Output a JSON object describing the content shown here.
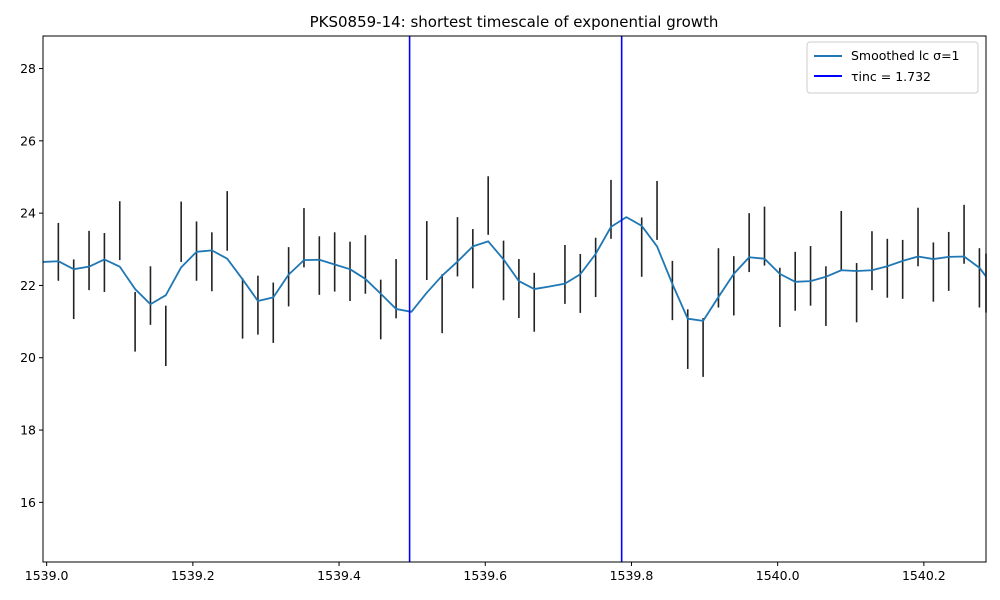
{
  "chart_data": {
    "type": "line",
    "title": "PKS0859-14: shortest timescale of exponential growth",
    "xlabel": "",
    "ylabel": "",
    "xlim": [
      1538.995,
      1540.285
    ],
    "ylim": [
      14.35,
      28.9
    ],
    "xticks": [
      {
        "value": 1539.0,
        "label": "1539.0"
      },
      {
        "value": 1539.2,
        "label": "1539.2"
      },
      {
        "value": 1539.4,
        "label": "1539.4"
      },
      {
        "value": 1539.6,
        "label": "1539.6"
      },
      {
        "value": 1539.8,
        "label": "1539.8"
      },
      {
        "value": 1540.0,
        "label": "1540.0"
      },
      {
        "value": 1540.2,
        "label": "1540.2"
      }
    ],
    "yticks": [
      {
        "value": 16,
        "label": "16"
      },
      {
        "value": 18,
        "label": "18"
      },
      {
        "value": 20,
        "label": "20"
      },
      {
        "value": 22,
        "label": "22"
      },
      {
        "value": 24,
        "label": "24"
      },
      {
        "value": 26,
        "label": "26"
      },
      {
        "value": 28,
        "label": "28"
      }
    ],
    "grid": false,
    "legend_position": "top-right",
    "series": [
      {
        "name": "Smoothed lc σ=1",
        "color": "#1f77b4",
        "x": [
          1538.995,
          1539.016,
          1539.037,
          1539.058,
          1539.079,
          1539.1,
          1539.121,
          1539.142,
          1539.163,
          1539.184,
          1539.205,
          1539.226,
          1539.247,
          1539.268,
          1539.289,
          1539.31,
          1539.331,
          1539.352,
          1539.373,
          1539.394,
          1539.415,
          1539.436,
          1539.457,
          1539.478,
          1539.499,
          1539.52,
          1539.541,
          1539.562,
          1539.583,
          1539.604,
          1539.625,
          1539.646,
          1539.667,
          1539.688,
          1539.709,
          1539.73,
          1539.751,
          1539.772,
          1539.793,
          1539.814,
          1539.835,
          1539.856,
          1539.877,
          1539.898,
          1539.919,
          1539.94,
          1539.961,
          1539.982,
          1540.003,
          1540.024,
          1540.045,
          1540.066,
          1540.087,
          1540.108,
          1540.129,
          1540.15,
          1540.171,
          1540.192,
          1540.213,
          1540.234,
          1540.255,
          1540.276,
          1540.285
        ],
        "y": [
          22.65,
          22.67,
          22.45,
          22.52,
          22.72,
          22.52,
          21.9,
          21.48,
          21.73,
          22.5,
          22.93,
          22.97,
          22.74,
          22.17,
          21.57,
          21.67,
          22.3,
          22.7,
          22.71,
          22.58,
          22.45,
          22.18,
          21.77,
          21.35,
          21.27,
          21.8,
          22.27,
          22.66,
          23.08,
          23.22,
          22.72,
          22.12,
          21.9,
          21.97,
          22.05,
          22.31,
          22.87,
          23.62,
          23.89,
          23.65,
          23.08,
          22.04,
          21.08,
          21.02,
          21.68,
          22.32,
          22.78,
          22.74,
          22.32,
          22.1,
          22.12,
          22.24,
          22.42,
          22.4,
          22.42,
          22.53,
          22.68,
          22.8,
          22.73,
          22.79,
          22.8,
          22.49,
          22.25
        ]
      },
      {
        "name": "τinc = 1.732",
        "color": "#0000ff",
        "vlines": [
          1539.4965,
          1539.7866
        ]
      }
    ],
    "errorbars": {
      "color": "#222222",
      "bars": [
        [
          1539.016,
          22.13,
          23.73
        ],
        [
          1539.037,
          21.07,
          22.72
        ],
        [
          1539.058,
          21.87,
          23.51
        ],
        [
          1539.079,
          21.82,
          23.45
        ],
        [
          1539.1,
          22.7,
          24.33
        ],
        [
          1539.121,
          20.17,
          21.82
        ],
        [
          1539.142,
          20.91,
          22.53
        ],
        [
          1539.163,
          19.77,
          21.44
        ],
        [
          1539.184,
          22.65,
          24.32
        ],
        [
          1539.205,
          22.13,
          23.77
        ],
        [
          1539.226,
          21.84,
          23.47
        ],
        [
          1539.247,
          22.96,
          24.61
        ],
        [
          1539.268,
          20.53,
          22.2
        ],
        [
          1539.289,
          20.64,
          22.27
        ],
        [
          1539.31,
          20.41,
          22.08
        ],
        [
          1539.331,
          21.42,
          23.06
        ],
        [
          1539.352,
          22.5,
          24.14
        ],
        [
          1539.373,
          21.74,
          23.36
        ],
        [
          1539.394,
          21.83,
          23.47
        ],
        [
          1539.415,
          21.57,
          23.21
        ],
        [
          1539.436,
          21.77,
          23.39
        ],
        [
          1539.457,
          20.51,
          22.16
        ],
        [
          1539.478,
          21.09,
          22.73
        ],
        [
          1539.52,
          22.15,
          23.78
        ],
        [
          1539.541,
          20.68,
          22.31
        ],
        [
          1539.562,
          22.25,
          23.89
        ],
        [
          1539.583,
          21.92,
          23.56
        ],
        [
          1539.604,
          23.4,
          25.02
        ],
        [
          1539.625,
          21.59,
          23.24
        ],
        [
          1539.646,
          21.1,
          22.73
        ],
        [
          1539.667,
          20.72,
          22.35
        ],
        [
          1539.709,
          21.49,
          23.12
        ],
        [
          1539.73,
          21.24,
          22.87
        ],
        [
          1539.751,
          21.68,
          23.32
        ],
        [
          1539.772,
          23.29,
          24.92
        ],
        [
          1539.814,
          22.24,
          23.88
        ],
        [
          1539.835,
          23.26,
          24.89
        ],
        [
          1539.856,
          21.04,
          22.68
        ],
        [
          1539.877,
          19.69,
          21.34
        ],
        [
          1539.898,
          19.47,
          21.1
        ],
        [
          1539.919,
          21.39,
          23.03
        ],
        [
          1539.94,
          21.17,
          22.81
        ],
        [
          1539.961,
          22.37,
          24.0
        ],
        [
          1539.982,
          22.55,
          24.18
        ],
        [
          1540.003,
          20.85,
          22.49
        ],
        [
          1540.024,
          21.3,
          22.93
        ],
        [
          1540.045,
          21.44,
          23.09
        ],
        [
          1540.066,
          20.88,
          22.53
        ],
        [
          1540.087,
          22.41,
          24.06
        ],
        [
          1540.108,
          20.98,
          22.62
        ],
        [
          1540.129,
          21.87,
          23.5
        ],
        [
          1540.15,
          21.66,
          23.29
        ],
        [
          1540.171,
          21.63,
          23.26
        ],
        [
          1540.192,
          22.53,
          24.15
        ],
        [
          1540.213,
          21.55,
          23.19
        ],
        [
          1540.234,
          21.85,
          23.48
        ],
        [
          1540.255,
          22.6,
          24.23
        ],
        [
          1540.276,
          21.39,
          23.03
        ],
        [
          1540.285,
          21.25,
          22.88
        ]
      ]
    },
    "legend": {
      "entries": [
        {
          "label": "Smoothed lc σ=1",
          "color": "#1f77b4"
        },
        {
          "label": "τinc = 1.732",
          "color": "#0000ff"
        }
      ]
    }
  }
}
